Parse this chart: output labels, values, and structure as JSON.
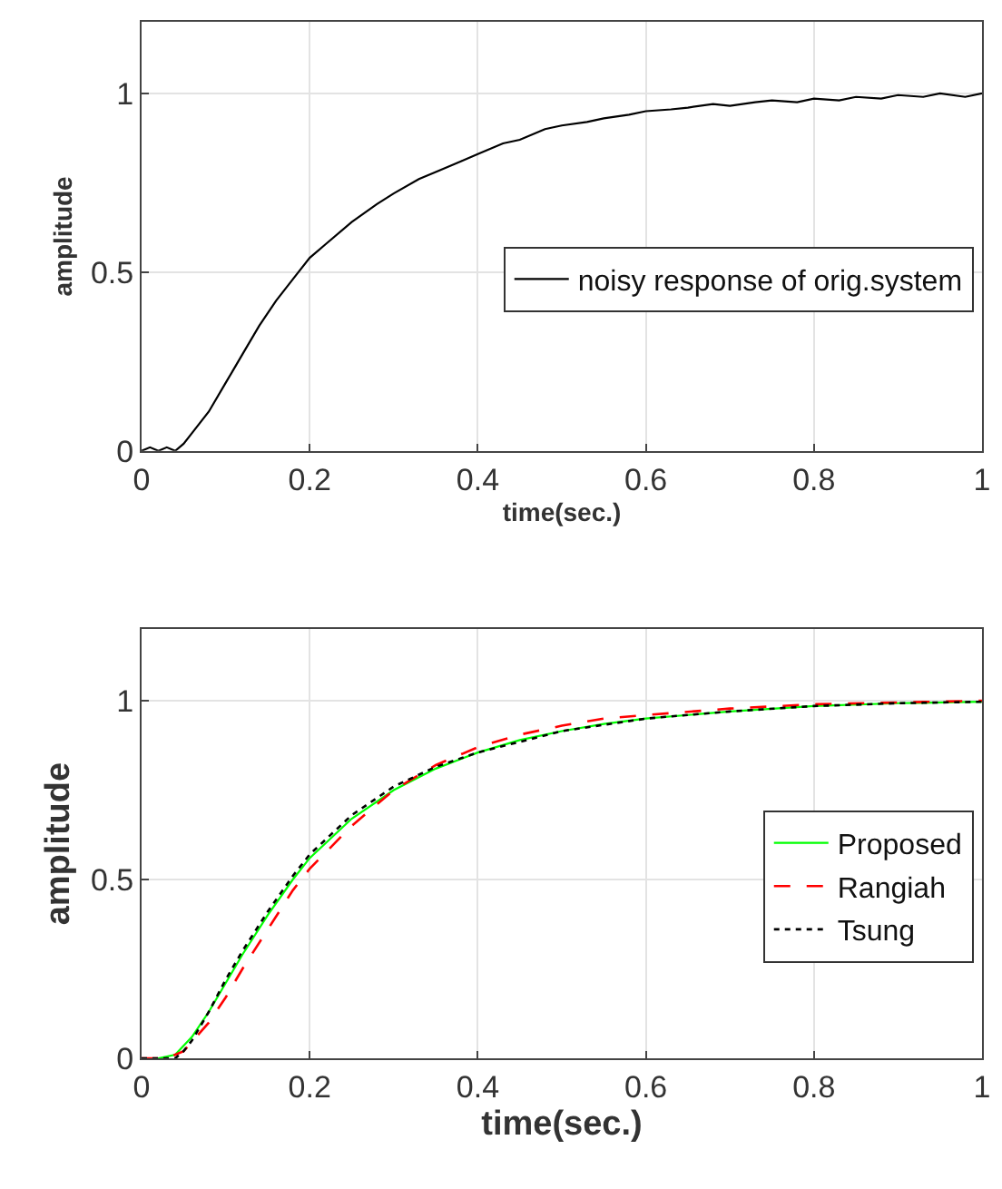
{
  "chart_data": [
    {
      "type": "line",
      "xlabel": "time(sec.)",
      "ylabel": "amplitude",
      "xlim": [
        0,
        1
      ],
      "ylim": [
        0,
        1.2
      ],
      "xticks": [
        0,
        0.2,
        0.4,
        0.6,
        0.8,
        1
      ],
      "yticks": [
        0,
        0.5,
        1
      ],
      "grid": true,
      "legend": "right",
      "series": [
        {
          "name": "noisy response of orig.system",
          "color": "#000000",
          "line_style": "solid",
          "x": [
            0,
            0.01,
            0.02,
            0.03,
            0.04,
            0.05,
            0.06,
            0.08,
            0.1,
            0.12,
            0.14,
            0.16,
            0.18,
            0.2,
            0.22,
            0.25,
            0.28,
            0.3,
            0.33,
            0.35,
            0.38,
            0.4,
            0.43,
            0.45,
            0.48,
            0.5,
            0.53,
            0.55,
            0.58,
            0.6,
            0.63,
            0.65,
            0.68,
            0.7,
            0.73,
            0.75,
            0.78,
            0.8,
            0.83,
            0.85,
            0.88,
            0.9,
            0.93,
            0.95,
            0.98,
            1.0
          ],
          "values": [
            0,
            0.01,
            0,
            0.01,
            0,
            0.02,
            0.05,
            0.11,
            0.19,
            0.27,
            0.35,
            0.42,
            0.48,
            0.54,
            0.58,
            0.64,
            0.69,
            0.72,
            0.76,
            0.78,
            0.81,
            0.83,
            0.86,
            0.87,
            0.9,
            0.91,
            0.92,
            0.93,
            0.94,
            0.95,
            0.955,
            0.96,
            0.97,
            0.965,
            0.975,
            0.98,
            0.975,
            0.985,
            0.98,
            0.99,
            0.985,
            0.995,
            0.99,
            1.0,
            0.99,
            1.0
          ]
        }
      ]
    },
    {
      "type": "line",
      "xlabel": "time(sec.)",
      "ylabel": "amplitude",
      "xlim": [
        0,
        1
      ],
      "ylim": [
        0,
        1.2
      ],
      "xticks": [
        0,
        0.2,
        0.4,
        0.6,
        0.8,
        1
      ],
      "yticks": [
        0,
        0.5,
        1
      ],
      "grid": true,
      "legend": "right",
      "series": [
        {
          "name": "Proposed",
          "color": "#00ff00",
          "line_style": "solid",
          "x": [
            0,
            0.02,
            0.04,
            0.06,
            0.08,
            0.1,
            0.12,
            0.15,
            0.18,
            0.2,
            0.25,
            0.3,
            0.35,
            0.4,
            0.45,
            0.5,
            0.55,
            0.6,
            0.7,
            0.8,
            0.9,
            1.0
          ],
          "values": [
            0,
            0,
            0.01,
            0.06,
            0.13,
            0.21,
            0.29,
            0.4,
            0.5,
            0.56,
            0.67,
            0.75,
            0.81,
            0.855,
            0.89,
            0.915,
            0.935,
            0.95,
            0.97,
            0.985,
            0.993,
            0.997
          ]
        },
        {
          "name": "Rangiah",
          "color": "#ff0000",
          "line_style": "dashed",
          "x": [
            0,
            0.03,
            0.05,
            0.08,
            0.1,
            0.12,
            0.15,
            0.18,
            0.2,
            0.25,
            0.3,
            0.35,
            0.4,
            0.45,
            0.5,
            0.55,
            0.6,
            0.7,
            0.8,
            0.9,
            1.0
          ],
          "values": [
            0,
            0,
            0.02,
            0.1,
            0.17,
            0.25,
            0.36,
            0.47,
            0.53,
            0.65,
            0.75,
            0.82,
            0.87,
            0.905,
            0.93,
            0.95,
            0.96,
            0.978,
            0.99,
            0.995,
            1.0
          ]
        },
        {
          "name": "Tsung",
          "color": "#000000",
          "line_style": "dotted",
          "x": [
            0,
            0.04,
            0.05,
            0.06,
            0.08,
            0.1,
            0.12,
            0.15,
            0.18,
            0.2,
            0.25,
            0.3,
            0.35,
            0.4,
            0.5,
            0.6,
            0.7,
            0.8,
            0.9,
            1.0
          ],
          "values": [
            0,
            0,
            0.02,
            0.05,
            0.13,
            0.22,
            0.3,
            0.41,
            0.51,
            0.57,
            0.68,
            0.76,
            0.815,
            0.855,
            0.915,
            0.95,
            0.97,
            0.985,
            0.993,
            0.997
          ]
        }
      ]
    }
  ]
}
